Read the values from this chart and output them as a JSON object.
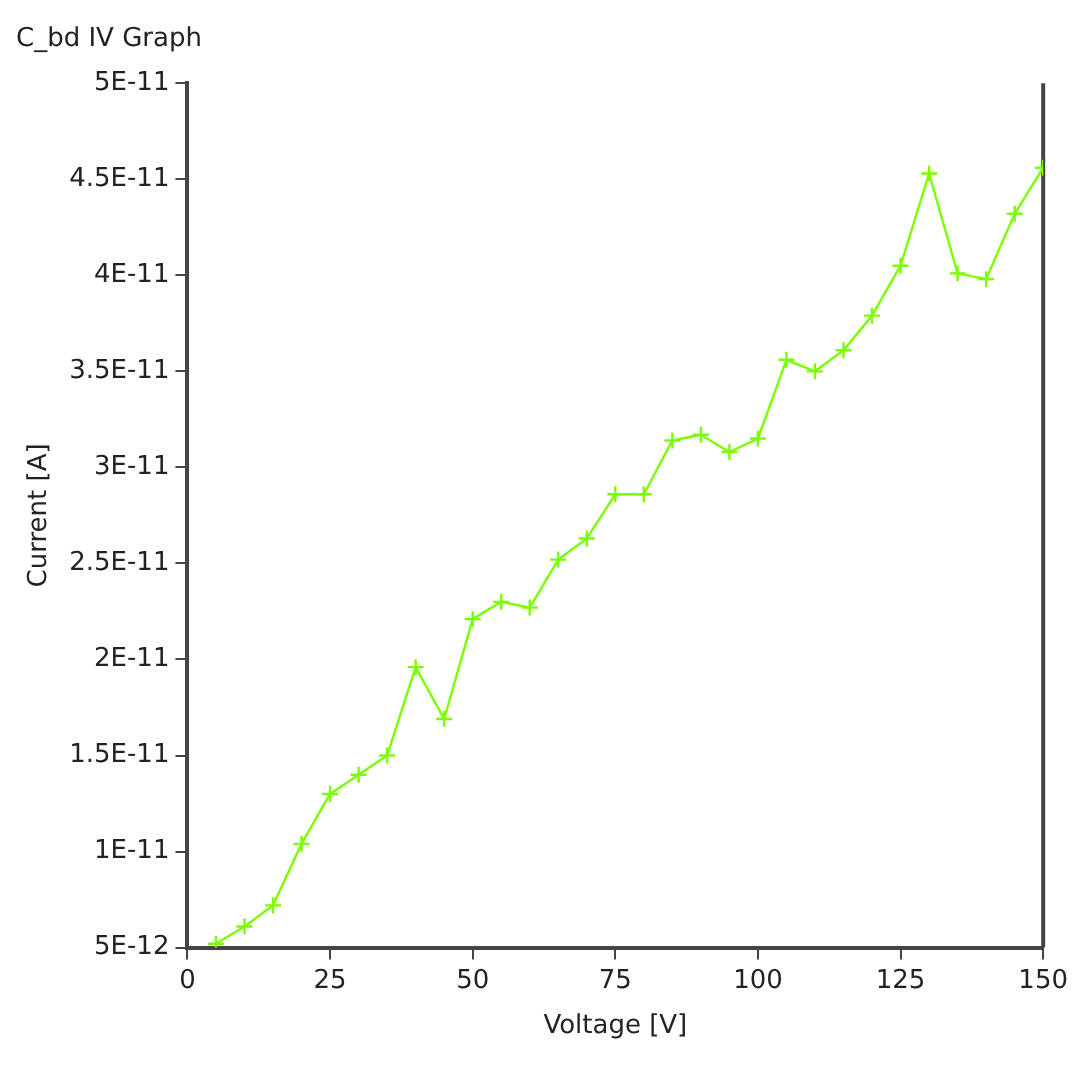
{
  "chart_data": {
    "type": "line",
    "title": "C_bd IV Graph",
    "xlabel": "Voltage [V]",
    "ylabel": "Current [A]",
    "x": [
      5,
      10,
      15,
      20,
      25,
      30,
      35,
      40,
      45,
      50,
      55,
      60,
      65,
      70,
      75,
      80,
      85,
      90,
      95,
      100,
      105,
      110,
      115,
      120,
      125,
      130,
      135,
      140,
      145,
      150
    ],
    "series": [
      {
        "color": "#7cfc00",
        "values": [
          5.2e-12,
          6.1e-12,
          7.2e-12,
          1.04e-11,
          1.3e-11,
          1.4e-11,
          1.5e-11,
          1.96e-11,
          1.69e-11,
          2.21e-11,
          2.3e-11,
          2.27e-11,
          2.52e-11,
          2.63e-11,
          2.86e-11,
          2.86e-11,
          3.14e-11,
          3.17e-11,
          3.08e-11,
          3.15e-11,
          3.56e-11,
          3.5e-11,
          3.61e-11,
          3.79e-11,
          4.05e-11,
          4.53e-11,
          4.01e-11,
          3.98e-11,
          4.32e-11,
          4.56e-11
        ]
      }
    ],
    "xlim": [
      0,
      150
    ],
    "xticks": [
      0,
      25,
      50,
      75,
      100,
      125,
      150
    ],
    "ylim": [
      5e-12,
      5e-11
    ],
    "yticks": [
      {
        "value": 5e-12,
        "label": "5E-12"
      },
      {
        "value": 1e-11,
        "label": "1E-11"
      },
      {
        "value": 1.5e-11,
        "label": "1.5E-11"
      },
      {
        "value": 2e-11,
        "label": "2E-11"
      },
      {
        "value": 2.5e-11,
        "label": "2.5E-11"
      },
      {
        "value": 3e-11,
        "label": "3E-11"
      },
      {
        "value": 3.5e-11,
        "label": "3.5E-11"
      },
      {
        "value": 4e-11,
        "label": "4E-11"
      },
      {
        "value": 4.5e-11,
        "label": "4.5E-11"
      },
      {
        "value": 5e-11,
        "label": "5E-11"
      }
    ],
    "grid": false,
    "legend": false,
    "marker": "cross",
    "line_style": "solid"
  }
}
